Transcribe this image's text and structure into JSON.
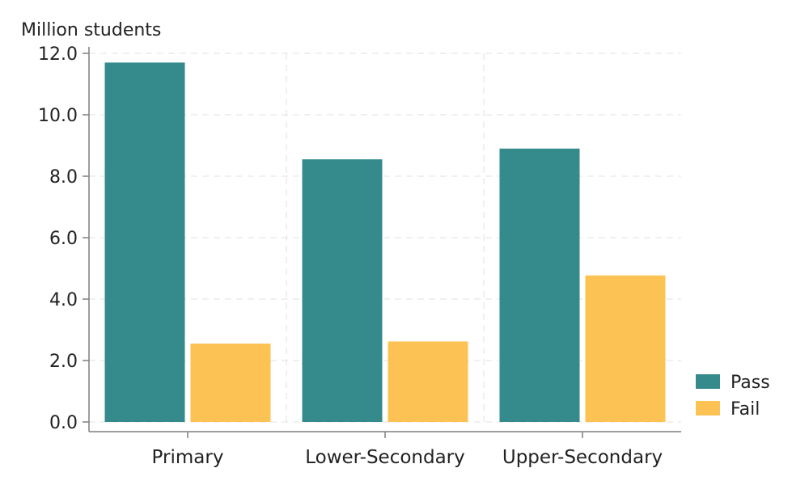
{
  "chart_data": {
    "type": "bar",
    "title": "",
    "ylabel": "Million students",
    "xlabel": "",
    "categories": [
      "Primary",
      "Lower-Secondary",
      "Upper-Secondary"
    ],
    "series": [
      {
        "name": "Pass",
        "color": "#358a8c",
        "values": [
          11.7,
          8.55,
          8.9
        ]
      },
      {
        "name": "Fail",
        "color": "#fdc254",
        "values": [
          2.55,
          2.62,
          4.77
        ]
      }
    ],
    "ylim": [
      0,
      12
    ],
    "yticks": [
      "0.0",
      "2.0",
      "4.0",
      "6.0",
      "8.0",
      "10.0",
      "12.0"
    ],
    "grid": true,
    "legend_position": "bottom-right"
  }
}
